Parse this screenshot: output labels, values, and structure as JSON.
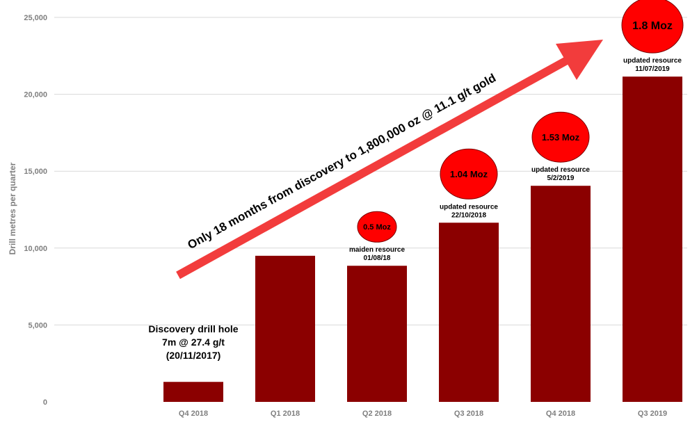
{
  "chart_data": {
    "type": "bar",
    "ylabel": "Drill metres per quarter",
    "xlabel": "",
    "ylim": [
      0,
      25000
    ],
    "yticks": [
      0,
      5000,
      10000,
      15000,
      20000,
      25000
    ],
    "ytick_labels": [
      "0",
      "5,000",
      "10,000",
      "15,000",
      "20,000",
      "25,000"
    ],
    "categories": [
      "Q4 2018",
      "Q1 2018",
      "Q2 2018",
      "Q3 2018",
      "Q4 2018",
      "Q3 2019"
    ],
    "values": [
      1300,
      9500,
      8850,
      11650,
      14050,
      21150
    ],
    "bar_color": "#8b0000",
    "grid": "horizontal",
    "arrow_text": "Only 18 months from discovery to 1,800,000 oz @ 11.1 g/t gold",
    "arrow_color": "#f23c3c",
    "discovery_note": [
      "Discovery drill hole",
      "7m @ 27.4 g/t",
      "(20/11/2017)"
    ],
    "resource_annotations": [
      {
        "category_index": 2,
        "moz": "0.5 Moz",
        "label": "maiden resource",
        "date": "01/08/18"
      },
      {
        "category_index": 3,
        "moz": "1.04 Moz",
        "label": "updated resource",
        "date": "22/10/2018"
      },
      {
        "category_index": 4,
        "moz": "1.53 Moz",
        "label": "updated resource",
        "date": "5/2/2019"
      },
      {
        "category_index": 5,
        "moz": "1.8 Moz",
        "label": "updated resource",
        "date": "11/07/2019"
      }
    ],
    "bubble_color": "#ff0000"
  }
}
